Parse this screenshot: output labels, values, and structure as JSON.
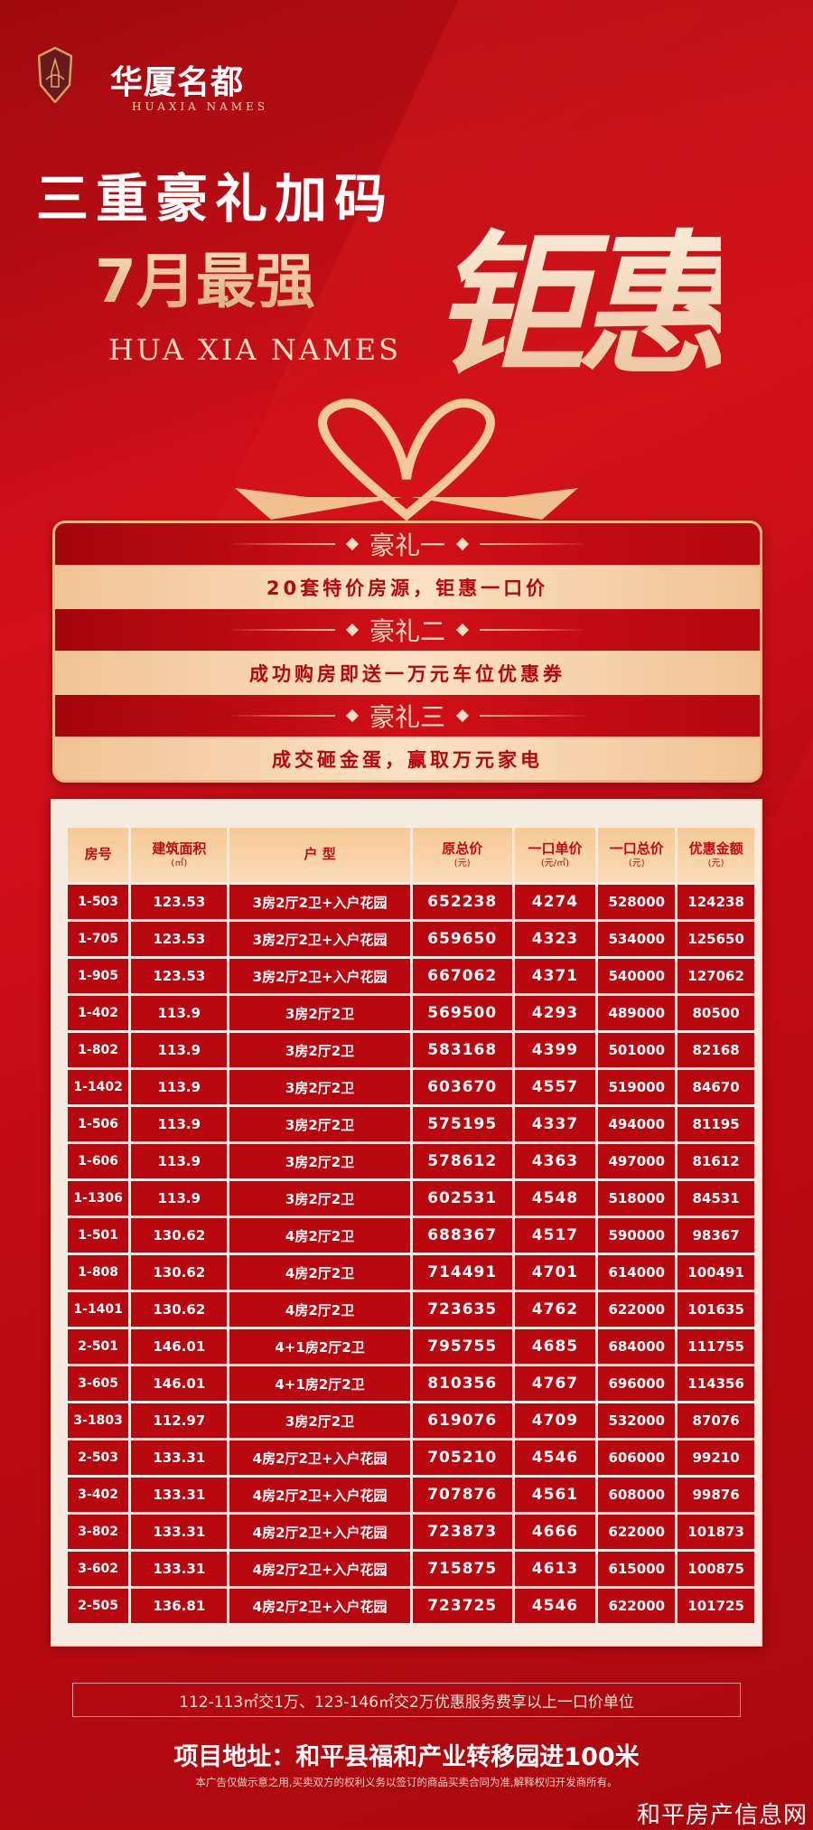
{
  "brand": {
    "name": "华厦名都",
    "name_en": "HUAXIA NAMES"
  },
  "headline": {
    "line1": "三重豪礼加码",
    "line2": "7月最强",
    "subtitle_en": "HUA XIA NAMES",
    "highlight": "钜惠"
  },
  "gifts": [
    {
      "title": "豪礼一",
      "text": "20套特价房源，钜惠一口价"
    },
    {
      "title": "豪礼二",
      "text": "成功购房即送一万元车位优惠券"
    },
    {
      "title": "豪礼三",
      "text": "成交砸金蛋，赢取万元家电"
    }
  ],
  "table": {
    "headers": [
      {
        "label": "房号",
        "unit": ""
      },
      {
        "label": "建筑面积",
        "unit": "(㎡)"
      },
      {
        "label": "户 型",
        "unit": ""
      },
      {
        "label": "原总价",
        "unit": "(元)"
      },
      {
        "label": "一口单价",
        "unit": "(元/㎡)"
      },
      {
        "label": "一口总价",
        "unit": "(元)"
      },
      {
        "label": "优惠金额",
        "unit": "(元)"
      }
    ],
    "rows": [
      [
        "1-503",
        "123.53",
        "3房2厅2卫+入户花园",
        "652238",
        "4274",
        "528000",
        "124238"
      ],
      [
        "1-705",
        "123.53",
        "3房2厅2卫+入户花园",
        "659650",
        "4323",
        "534000",
        "125650"
      ],
      [
        "1-905",
        "123.53",
        "3房2厅2卫+入户花园",
        "667062",
        "4371",
        "540000",
        "127062"
      ],
      [
        "1-402",
        "113.9",
        "3房2厅2卫",
        "569500",
        "4293",
        "489000",
        "80500"
      ],
      [
        "1-802",
        "113.9",
        "3房2厅2卫",
        "583168",
        "4399",
        "501000",
        "82168"
      ],
      [
        "1-1402",
        "113.9",
        "3房2厅2卫",
        "603670",
        "4557",
        "519000",
        "84670"
      ],
      [
        "1-506",
        "113.9",
        "3房2厅2卫",
        "575195",
        "4337",
        "494000",
        "81195"
      ],
      [
        "1-606",
        "113.9",
        "3房2厅2卫",
        "578612",
        "4363",
        "497000",
        "81612"
      ],
      [
        "1-1306",
        "113.9",
        "3房2厅2卫",
        "602531",
        "4548",
        "518000",
        "84531"
      ],
      [
        "1-501",
        "130.62",
        "4房2厅2卫",
        "688367",
        "4517",
        "590000",
        "98367"
      ],
      [
        "1-808",
        "130.62",
        "4房2厅2卫",
        "714491",
        "4701",
        "614000",
        "100491"
      ],
      [
        "1-1401",
        "130.62",
        "4房2厅2卫",
        "723635",
        "4762",
        "622000",
        "101635"
      ],
      [
        "2-501",
        "146.01",
        "4+1房2厅2卫",
        "795755",
        "4685",
        "684000",
        "111755"
      ],
      [
        "3-605",
        "146.01",
        "4+1房2厅2卫",
        "810356",
        "4767",
        "696000",
        "114356"
      ],
      [
        "3-1803",
        "112.97",
        "3房2厅2卫",
        "619076",
        "4709",
        "532000",
        "87076"
      ],
      [
        "2-503",
        "133.31",
        "4房2厅2卫+入户花园",
        "705210",
        "4546",
        "606000",
        "99210"
      ],
      [
        "3-402",
        "133.31",
        "4房2厅2卫+入户花园",
        "707876",
        "4561",
        "608000",
        "99876"
      ],
      [
        "3-802",
        "133.31",
        "4房2厅2卫+入户花园",
        "723873",
        "4666",
        "622000",
        "101873"
      ],
      [
        "3-602",
        "133.31",
        "4房2厅2卫+入户花园",
        "715875",
        "4613",
        "615000",
        "100875"
      ],
      [
        "2-505",
        "136.81",
        "4房2厅2卫+入户花园",
        "723725",
        "4546",
        "622000",
        "101725"
      ]
    ]
  },
  "note": "112-113㎡交1万、123-146㎡交2万优惠服务费享以上一口价单位",
  "address": "项目地址：和平县福和产业转移园进100米",
  "disclaimer": "本广告仅做示意之用,买卖双方的权利义务以签订的商品买卖合同为准,解释权归开发商所有。",
  "watermark": "和平房产信息网",
  "colors": {
    "primary_red": "#c10c14",
    "gold": "#f2c99a",
    "cell_red": "#b8070f"
  }
}
